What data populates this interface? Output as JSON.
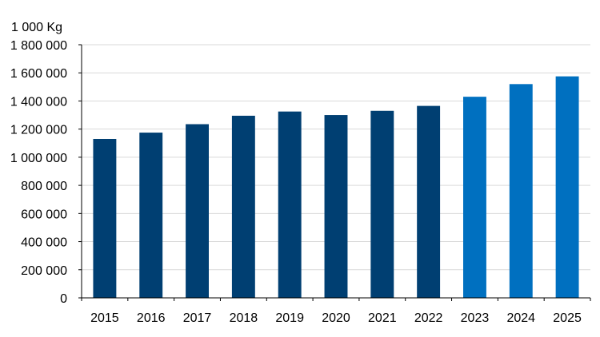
{
  "chart_data": {
    "type": "bar",
    "unit_label": "1 000 Kg",
    "categories": [
      "2015",
      "2016",
      "2017",
      "2018",
      "2019",
      "2020",
      "2021",
      "2022",
      "2023",
      "2024",
      "2025"
    ],
    "values": [
      1130000,
      1175000,
      1235000,
      1295000,
      1325000,
      1300000,
      1330000,
      1365000,
      1430000,
      1520000,
      1575000
    ],
    "bar_colors": [
      "#003F72",
      "#003F72",
      "#003F72",
      "#003F72",
      "#003F72",
      "#003F72",
      "#003F72",
      "#003F72",
      "#0070C0",
      "#0070C0",
      "#0070C0"
    ],
    "ylim": [
      0,
      1800000
    ],
    "yticks": [
      0,
      200000,
      400000,
      600000,
      800000,
      1000000,
      1200000,
      1400000,
      1600000,
      1800000
    ],
    "ytick_labels": [
      "0",
      "200 000",
      "400 000",
      "600 000",
      "800 000",
      "1 000 000",
      "1 200 000",
      "1 400 000",
      "1 600 000",
      "1 800 000"
    ],
    "grid": true,
    "colors": {
      "grid": "#D9D9D9",
      "axis": "#000000",
      "text": "#000000"
    }
  }
}
